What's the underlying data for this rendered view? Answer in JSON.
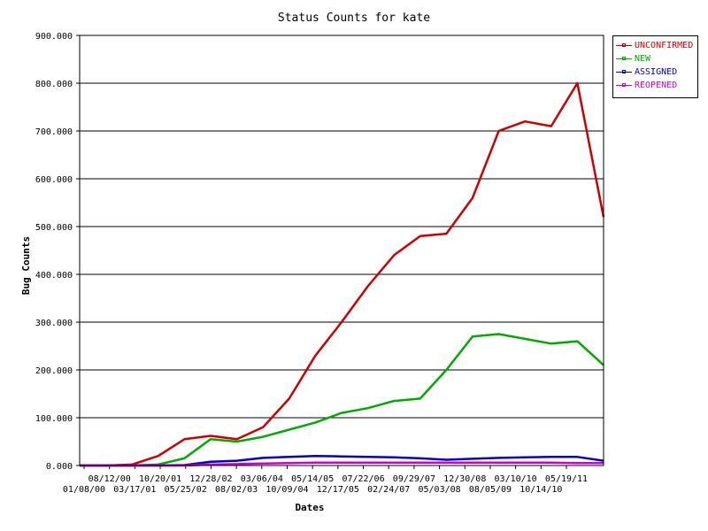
{
  "chart_data": {
    "type": "line",
    "title": "Status Counts for kate",
    "xlabel": "Dates",
    "ylabel": "Bug Counts",
    "ylim": [
      0,
      900
    ],
    "y_ticks": [
      "0.000",
      "100.000",
      "200.000",
      "300.000",
      "400.000",
      "500.000",
      "600.000",
      "700.000",
      "800.000",
      "900.000"
    ],
    "x_tick_labels_upper": [
      "08/12/00",
      "10/20/01",
      "12/28/02",
      "03/06/04",
      "05/14/05",
      "07/22/06",
      "09/29/07",
      "12/30/08",
      "03/10/10",
      "05/19/11"
    ],
    "x_tick_labels_lower": [
      "01/08/00",
      "03/17/01",
      "05/25/02",
      "08/02/03",
      "10/09/04",
      "12/17/05",
      "02/24/07",
      "05/03/08",
      "08/05/09",
      "10/14/10"
    ],
    "x": [
      "01/08/00",
      "08/12/00",
      "03/17/01",
      "10/20/01",
      "05/25/02",
      "12/28/02",
      "08/02/03",
      "03/06/04",
      "10/09/04",
      "05/14/05",
      "12/17/05",
      "07/22/06",
      "02/24/07",
      "09/29/07",
      "05/03/08",
      "12/30/08",
      "08/05/09",
      "03/10/10",
      "10/14/10",
      "05/19/11",
      "12/10/11"
    ],
    "grid": true,
    "legend_position": "top-right",
    "series": [
      {
        "name": "UNCONFIRMED",
        "color": "#cc0000",
        "values": [
          0,
          0,
          2,
          20,
          55,
          62,
          55,
          80,
          140,
          230,
          300,
          375,
          440,
          480,
          485,
          560,
          700,
          720,
          710,
          800,
          520
        ]
      },
      {
        "name": "NEW",
        "color": "#00aa00",
        "values": [
          0,
          0,
          0,
          2,
          15,
          55,
          50,
          60,
          75,
          90,
          110,
          120,
          135,
          140,
          200,
          270,
          275,
          265,
          255,
          260,
          210
        ]
      },
      {
        "name": "ASSIGNED",
        "color": "#0000cc",
        "values": [
          0,
          0,
          0,
          0,
          1,
          8,
          10,
          16,
          18,
          20,
          19,
          18,
          17,
          15,
          12,
          14,
          16,
          17,
          18,
          18,
          10
        ]
      },
      {
        "name": "REOPENED",
        "color": "#cc00cc",
        "values": [
          0,
          0,
          0,
          0,
          0,
          2,
          3,
          4,
          5,
          6,
          6,
          6,
          6,
          6,
          6,
          6,
          6,
          6,
          6,
          5,
          5
        ]
      }
    ]
  }
}
